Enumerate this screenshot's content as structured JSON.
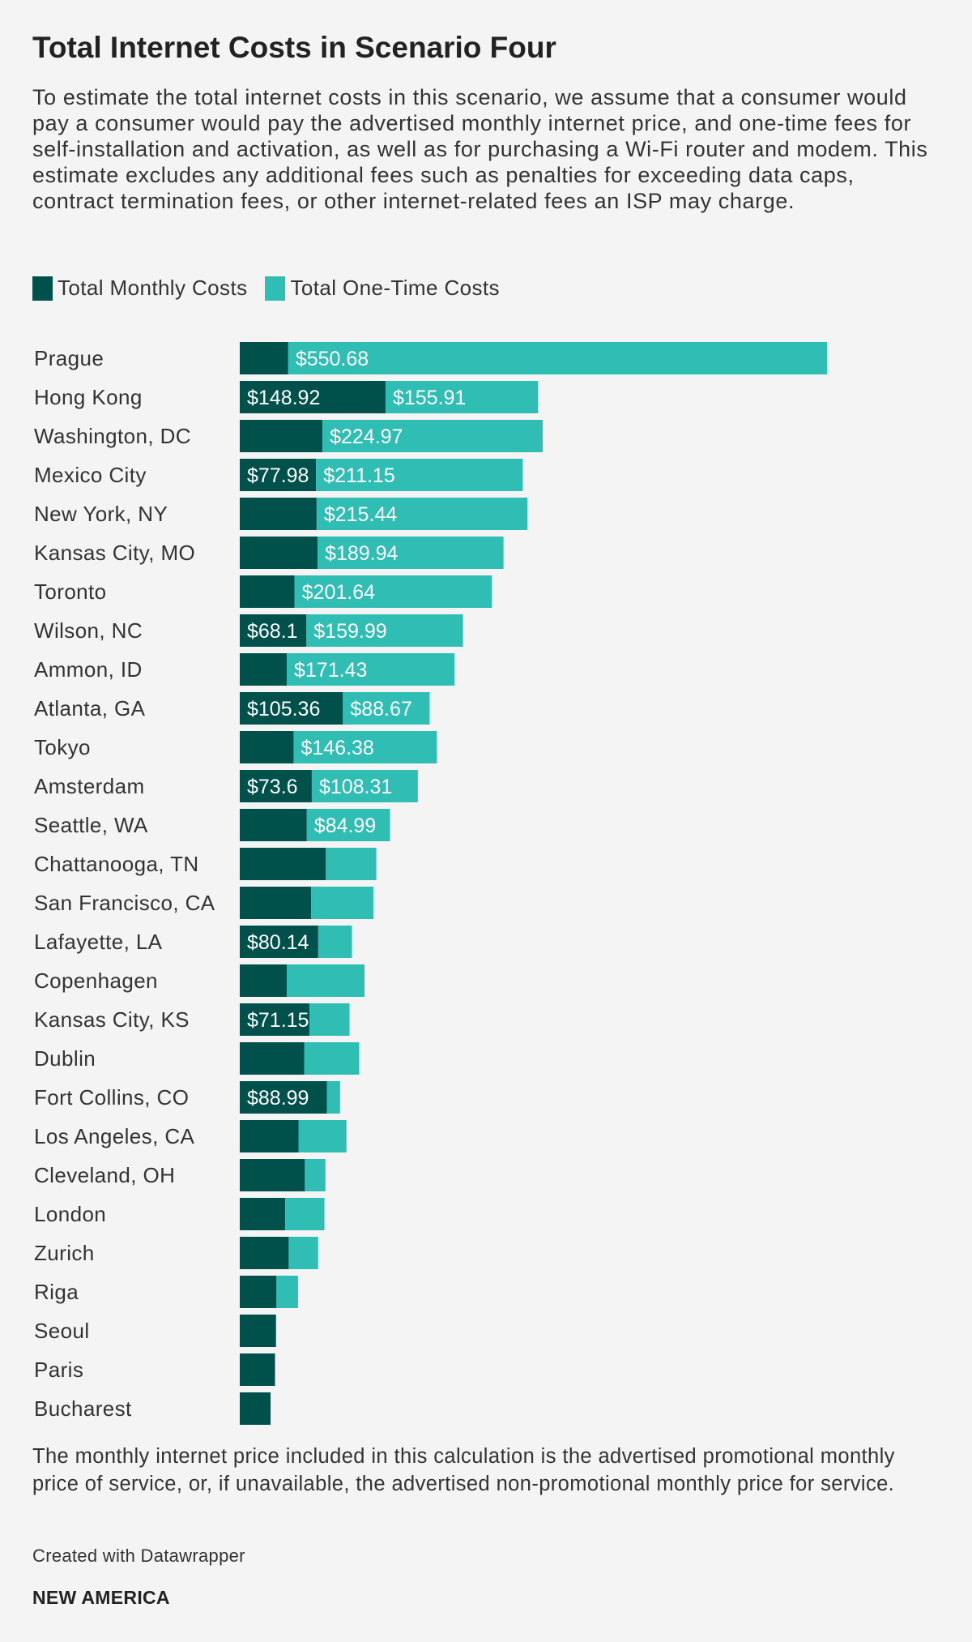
{
  "colors": {
    "monthly": "#00504c",
    "one_time": "#30bdb4",
    "background": "#f4f4f4"
  },
  "footer": {
    "note": "The monthly internet price included in this calculation is the advertised promotional monthly price of service, or, if unavailable, the advertised non-promotional monthly price for service.",
    "credit": "Created with Datawrapper",
    "brand": "NEW AMERICA"
  },
  "chart_data": {
    "type": "bar",
    "orientation": "horizontal",
    "stacked": true,
    "title": "Total Internet Costs in Scenario Four",
    "description": "To estimate the total internet costs in this scenario, we assume that a consumer would pay a consumer would pay the advertised monthly internet price, and one-time fees for self-installation and activation, as well as for purchasing a Wi-Fi router and modem. This estimate excludes any additional fees such as penalties for exceeding data caps, contract termination fees, or other internet-related fees an ISP may charge.",
    "legend": [
      "Total Monthly Costs",
      "Total One-Time Costs"
    ],
    "xlim": [
      0,
      715
    ],
    "categories": [
      "Prague",
      "Hong Kong",
      "Washington, DC",
      "Mexico City",
      "New York, NY",
      "Kansas City, MO",
      "Toronto",
      "Wilson, NC",
      "Ammon, ID",
      "Atlanta, GA",
      "Tokyo",
      "Amsterdam",
      "Seattle, WA",
      "Chattanooga, TN",
      "San Francisco, CA",
      "Lafayette, LA",
      "Copenhagen",
      "Kansas City, KS",
      "Dublin",
      "Fort Collins, CO",
      "Los Angeles, CA",
      "Cleveland, OH",
      "London",
      "Zurich",
      "Riga",
      "Seoul",
      "Paris",
      "Bucharest"
    ],
    "series": [
      {
        "name": "Total Monthly Costs",
        "values": [
          49.5,
          148.92,
          84.5,
          77.98,
          78.5,
          79.5,
          56,
          68.1,
          48,
          105.36,
          55,
          73.6,
          68.5,
          88,
          73,
          80.14,
          48,
          71.15,
          66,
          88.99,
          60,
          66.5,
          46.5,
          50,
          37.5,
          37,
          36,
          31.5
        ],
        "labels": [
          "",
          "$148.92",
          "",
          "$77.98",
          "",
          "",
          "",
          "$68.1",
          "",
          "$105.36",
          "",
          "$73.6",
          "",
          "",
          "",
          "$80.14",
          "",
          "$71.15",
          "",
          "$88.99",
          "",
          "",
          "",
          "",
          "",
          "",
          "",
          ""
        ]
      },
      {
        "name": "Total One-Time Costs",
        "values": [
          550.68,
          155.91,
          224.97,
          211.15,
          215.44,
          189.94,
          201.64,
          159.99,
          171.43,
          88.67,
          146.38,
          108.31,
          84.99,
          51.5,
          63.5,
          34.5,
          79.5,
          41,
          56,
          13.5,
          49,
          21,
          40,
          30,
          22,
          0,
          0,
          0
        ],
        "labels": [
          "$550.68",
          "$155.91",
          "$224.97",
          "$211.15",
          "$215.44",
          "$189.94",
          "$201.64",
          "$159.99",
          "$171.43",
          "$88.67",
          "$146.38",
          "$108.31",
          "$84.99",
          "",
          "",
          "",
          "",
          "",
          "",
          "",
          "",
          "",
          "",
          "",
          "",
          "",
          "",
          ""
        ]
      }
    ]
  }
}
